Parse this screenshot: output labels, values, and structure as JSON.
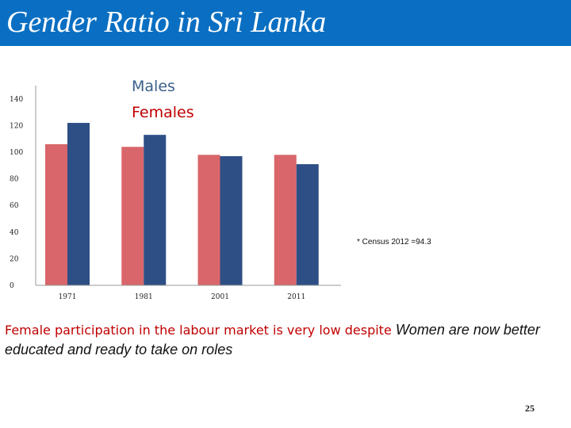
{
  "title": "Gender Ratio in Sri Lanka",
  "chart_data": {
    "type": "bar",
    "categories": [
      "1971",
      "1981",
      "2001",
      "2011"
    ],
    "tick_labels": [
      "1971",
      "1981",
      "2001",
      "2011"
    ],
    "series": [
      {
        "name": "Females",
        "color": "#d9666a",
        "values": [
          106,
          104,
          98,
          98
        ]
      },
      {
        "name": "Males",
        "color": "#2e4f85",
        "values": [
          122,
          113,
          97,
          91
        ]
      }
    ],
    "legend": [
      "Males",
      "Females"
    ],
    "legend_colors": [
      "#3a5f8a",
      "#c00000"
    ],
    "legend_placement": "top-center",
    "yticks": [
      0,
      20,
      40,
      60,
      80,
      100,
      120,
      140
    ],
    "ylim": [
      0,
      150
    ],
    "grid": false,
    "annotation": "* Census 2012 =94.3"
  },
  "caption": {
    "red_text": "Female participation in the labour market is very low despite",
    "black_text": "Women are  now better educated and ready to take on roles"
  },
  "page_number": "25"
}
